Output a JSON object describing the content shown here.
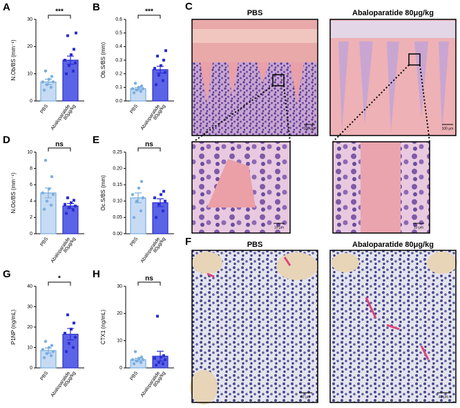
{
  "chart_data": [
    {
      "type": "bar",
      "panel": "A",
      "ylabel": "N.Ob/BS (mm⁻¹)",
      "categories": [
        [
          "PBS"
        ],
        [
          "Abaloparatide",
          "80μg/kg"
        ]
      ],
      "values": [
        7,
        15
      ],
      "errors": [
        1,
        1.5
      ],
      "points": [
        [
          4,
          5,
          6,
          7,
          7,
          8,
          9,
          11
        ],
        [
          10,
          11,
          13,
          14,
          15,
          17,
          19,
          24,
          25
        ]
      ],
      "significance": "***",
      "ylim": [
        0,
        30
      ],
      "yticks": [
        0,
        10,
        20,
        30
      ],
      "colors": [
        "#c6dbf3",
        "#5b63e6"
      ],
      "edge_colors": [
        "#7aaee0",
        "#2b2fcf"
      ]
    },
    {
      "type": "bar",
      "panel": "B",
      "ylabel": "Ob.S/BS (mm)",
      "categories": [
        [
          "PBS"
        ],
        [
          "Abaloparatide",
          "80μg/kg"
        ]
      ],
      "values": [
        0.09,
        0.23
      ],
      "errors": [
        0.01,
        0.025
      ],
      "points": [
        [
          0.06,
          0.07,
          0.08,
          0.09,
          0.09,
          0.1,
          0.11,
          0.13
        ],
        [
          0.12,
          0.15,
          0.19,
          0.21,
          0.24,
          0.26,
          0.3,
          0.33,
          0.37
        ]
      ],
      "significance": "***",
      "ylim": [
        0,
        0.6
      ],
      "yticks": [
        {
          "value": 0,
          "label": "0.0"
        },
        0.1,
        0.2,
        0.3,
        0.4,
        0.5,
        0.6
      ],
      "colors": [
        "#c6dbf3",
        "#5b63e6"
      ],
      "edge_colors": [
        "#7aaee0",
        "#2b2fcf"
      ]
    },
    {
      "type": "bar",
      "panel": "D",
      "ylabel": "N.Oc/BS (mm⁻¹)",
      "categories": [
        [
          "PBS"
        ],
        [
          "Abaloparatide",
          "80μg/kg"
        ]
      ],
      "values": [
        5.0,
        3.4
      ],
      "errors": [
        0.6,
        0.3
      ],
      "points": [
        [
          3,
          3.5,
          4,
          4.8,
          5,
          5.5,
          7,
          9
        ],
        [
          2.5,
          2.9,
          3.2,
          3.4,
          3.6,
          3.8,
          4.1,
          4.4
        ]
      ],
      "significance": "ns",
      "ylim": [
        0,
        10
      ],
      "yticks": [
        0,
        2,
        4,
        6,
        8,
        10
      ],
      "colors": [
        "#c6dbf3",
        "#5b63e6"
      ],
      "edge_colors": [
        "#7aaee0",
        "#2b2fcf"
      ]
    },
    {
      "type": "bar",
      "panel": "E",
      "ylabel": "Oc.S/BS (mm)",
      "categories": [
        [
          "PBS"
        ],
        [
          "Abaloparatide",
          "80μg/kg"
        ]
      ],
      "values": [
        0.11,
        0.095
      ],
      "errors": [
        0.015,
        0.012
      ],
      "points": [
        [
          0.05,
          0.07,
          0.1,
          0.11,
          0.12,
          0.14,
          0.16
        ],
        [
          0.05,
          0.07,
          0.09,
          0.1,
          0.11,
          0.12,
          0.13
        ]
      ],
      "significance": "ns",
      "ylim": [
        0,
        0.25
      ],
      "yticks": [
        {
          "value": 0,
          "label": "0.00"
        },
        0.05,
        {
          "value": 0.1,
          "label": "0.10"
        },
        0.15,
        {
          "value": 0.2,
          "label": "0.20"
        },
        0.25
      ],
      "colors": [
        "#c6dbf3",
        "#5b63e6"
      ],
      "edge_colors": [
        "#7aaee0",
        "#2b2fcf"
      ]
    },
    {
      "type": "bar",
      "panel": "G",
      "ylabel": "P1NP (ng/mL)",
      "categories": [
        [
          "PBS"
        ],
        [
          "Abaloparatide",
          "80μg/kg"
        ]
      ],
      "values": [
        8.5,
        16.5
      ],
      "errors": [
        1.2,
        2.8
      ],
      "points": [
        [
          5,
          6,
          7,
          8,
          9,
          10,
          11,
          13
        ],
        [
          8,
          10,
          12,
          15,
          17,
          19,
          22,
          26
        ]
      ],
      "significance": "*",
      "ylim": [
        0,
        40
      ],
      "yticks": [
        0,
        10,
        20,
        30,
        40
      ],
      "colors": [
        "#c6dbf3",
        "#5b63e6"
      ],
      "edge_colors": [
        "#7aaee0",
        "#2b2fcf"
      ]
    },
    {
      "type": "bar",
      "panel": "H",
      "ylabel": "CTX1 (ng/mL)",
      "categories": [
        [
          "PBS"
        ],
        [
          "Abaloparatide",
          "80μg/kg"
        ]
      ],
      "values": [
        3,
        4.3
      ],
      "errors": [
        0.5,
        1.8
      ],
      "points": [
        [
          1.5,
          2,
          2.5,
          3,
          3,
          3.5,
          4,
          6
        ],
        [
          1,
          1.5,
          2,
          3,
          3.5,
          4,
          4.5,
          19
        ]
      ],
      "significance": "ns",
      "ylim": [
        0,
        30
      ],
      "yticks": [
        0,
        10,
        20,
        30
      ],
      "colors": [
        "#c6dbf3",
        "#5b63e6"
      ],
      "edge_colors": [
        "#7aaee0",
        "#2b2fcf"
      ]
    }
  ],
  "panels": {
    "C": {
      "label": "C",
      "titles": [
        "PBS",
        "Abaloparatide 80μg/kg"
      ],
      "scale_main": "100 μm",
      "scale_zoom": "10 μm"
    },
    "F": {
      "label": "F",
      "titles": [
        "PBS",
        "Abaloparatide 80μg/kg"
      ],
      "scale": "40 μm"
    }
  }
}
